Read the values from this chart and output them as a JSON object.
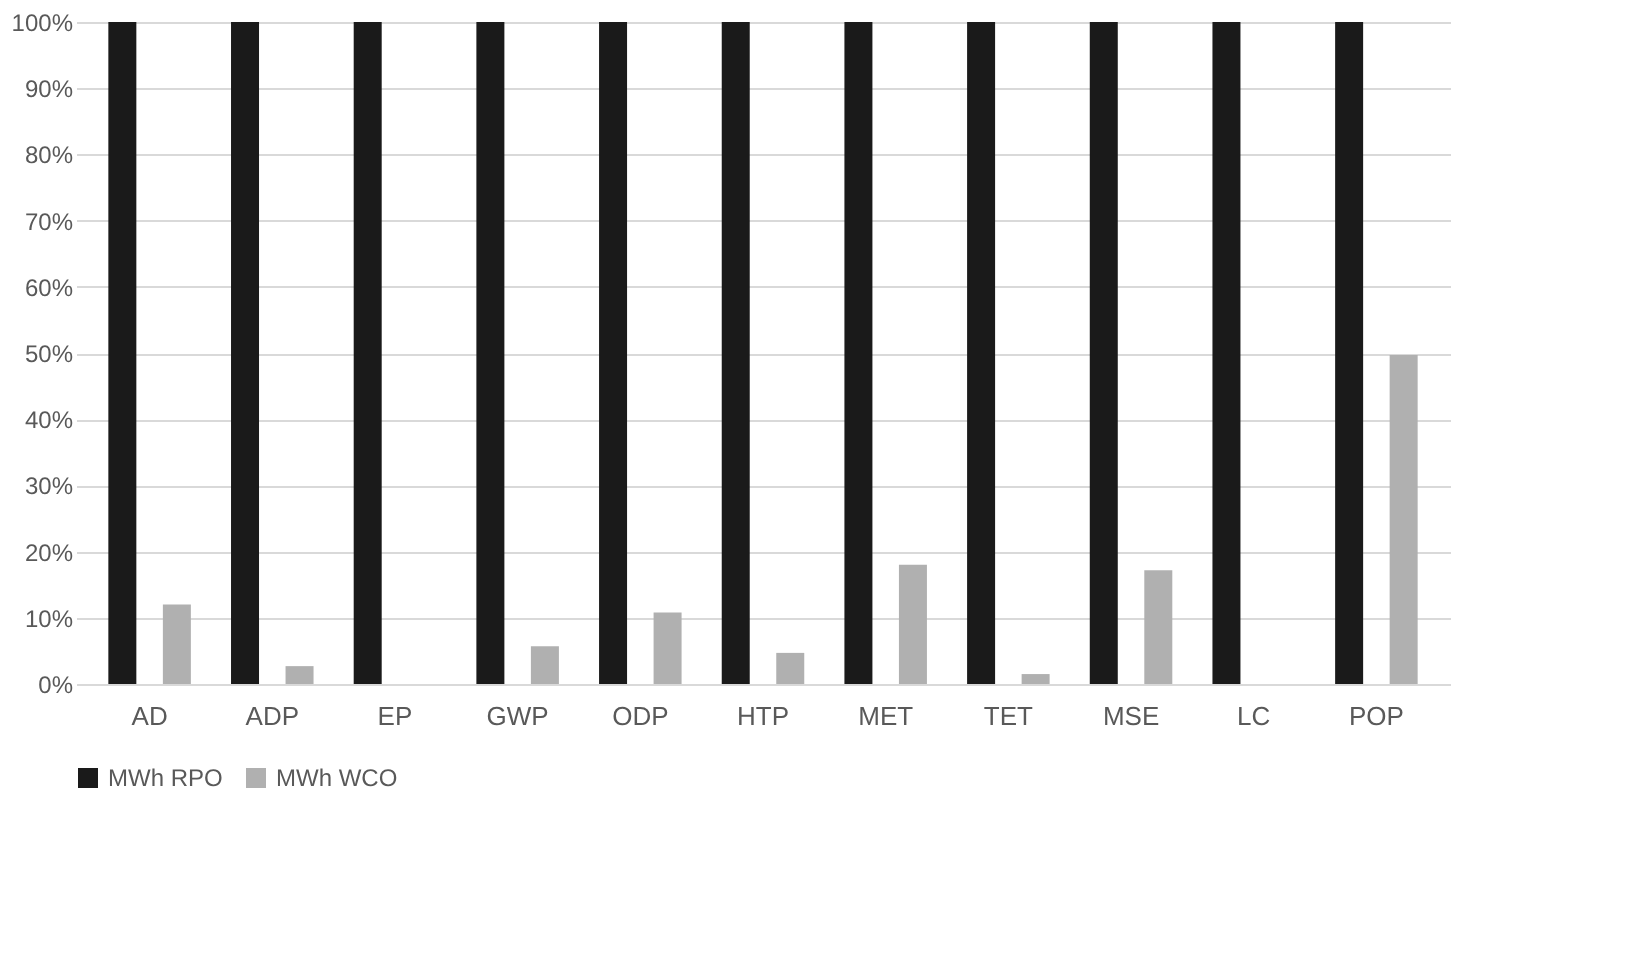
{
  "chart_data": {
    "type": "bar",
    "categories": [
      "AD",
      "ADP",
      "EP",
      "GWP",
      "ODP",
      "HTP",
      "MET",
      "TET",
      "MSE",
      "LC",
      "POP"
    ],
    "series": [
      {
        "name": "MWh RPO",
        "color": "#1a1a1a",
        "values": [
          100,
          100,
          100,
          100,
          100,
          100,
          100,
          100,
          100,
          100,
          100
        ]
      },
      {
        "name": "MWh WCO",
        "color": "#b0b0b0",
        "values": [
          12,
          2.7,
          0,
          5.7,
          10.8,
          4.7,
          18,
          1.5,
          17.2,
          0,
          49.7
        ]
      }
    ],
    "ylim": [
      0,
      100
    ],
    "yticks": [
      {
        "value": 0,
        "label": "0%"
      },
      {
        "value": 10,
        "label": "10%"
      },
      {
        "value": 20,
        "label": "20%"
      },
      {
        "value": 30,
        "label": "30%"
      },
      {
        "value": 40,
        "label": "40%"
      },
      {
        "value": 50,
        "label": "50%"
      },
      {
        "value": 60,
        "label": "60%"
      },
      {
        "value": 70,
        "label": "70%"
      },
      {
        "value": 80,
        "label": "80%"
      },
      {
        "value": 90,
        "label": "90%"
      },
      {
        "value": 100,
        "label": "100%"
      }
    ],
    "grid": "y",
    "legend": "bottom"
  }
}
